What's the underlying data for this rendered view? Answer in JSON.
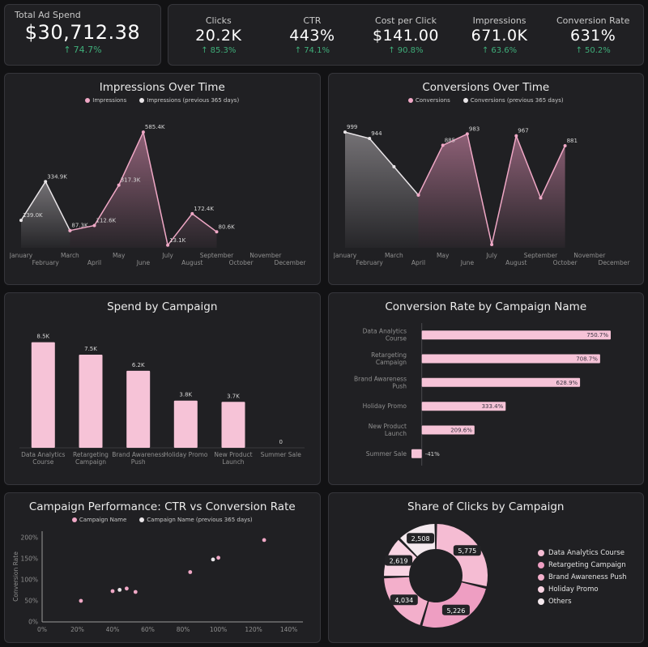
{
  "page": {
    "background": "#121214",
    "card_color": "#202023",
    "accent_pink": "#f2b4ce",
    "previous_period_color": "#e9e5e8",
    "positive_green": "#3fae7a"
  },
  "kpis": {
    "up_arrow": "↑",
    "primary": {
      "label": "Total Ad Spend",
      "value": "$30,712.38",
      "delta": "74.7%"
    },
    "items": [
      {
        "label": "Clicks",
        "value": "20.2K",
        "delta": "85.3%"
      },
      {
        "label": "CTR",
        "value": "443%",
        "delta": "74.1%"
      },
      {
        "label": "Cost per Click",
        "value": "$141.00",
        "delta": "90.8%"
      },
      {
        "label": "Impressions",
        "value": "671.0K",
        "delta": "63.6%"
      },
      {
        "label": "Conversion Rate",
        "value": "631%",
        "delta": "50.2%"
      }
    ]
  },
  "chart_data": [
    {
      "type": "area",
      "title": "Impressions Over Time",
      "legend": [
        {
          "label": "Impressions",
          "color": "#f0a8c6"
        },
        {
          "label": "Impressions (previous 365 days)",
          "color": "#e9e5e8"
        }
      ],
      "x_categories": [
        "January",
        "February",
        "March",
        "April",
        "May",
        "June",
        "July",
        "August",
        "September",
        "October",
        "November",
        "December"
      ],
      "series": [
        {
          "name": "Impressions (previous 365 days)",
          "color": "#e9e5e8",
          "fill": "#b9b4b8",
          "values": [
            139000,
            334900,
            87300,
            null,
            null,
            null,
            null,
            null,
            null,
            null,
            null,
            null
          ],
          "labels": [
            "139.0K",
            "334.9K",
            "87.3K",
            "",
            "",
            "",
            "",
            "",
            "",
            "",
            "",
            ""
          ]
        },
        {
          "name": "Impressions",
          "color": "#f0a8c6",
          "fill": "#e895bb",
          "values": [
            null,
            null,
            87300,
            112600,
            317300,
            585400,
            13100,
            172400,
            80600,
            null,
            null,
            null
          ],
          "labels": [
            "",
            "",
            "",
            "112.6K",
            "317.3K",
            "585.4K",
            "13.1K",
            "172.4K",
            "80.6K",
            "",
            "",
            ""
          ]
        }
      ]
    },
    {
      "type": "area",
      "title": "Conversions Over Time",
      "legend": [
        {
          "label": "Conversions",
          "color": "#f0a8c6"
        },
        {
          "label": "Conversions (previous 365 days)",
          "color": "#e9e5e8"
        }
      ],
      "x_categories": [
        "January",
        "February",
        "March",
        "April",
        "May",
        "June",
        "July",
        "August",
        "September",
        "October",
        "November",
        "December"
      ],
      "series": [
        {
          "name": "Conversions (previous 365 days)",
          "color": "#e9e5e8",
          "fill": "#b9b4b8",
          "values": [
            999,
            944,
            700,
            455,
            null,
            null,
            null,
            null,
            null,
            null,
            null,
            null
          ],
          "labels": [
            "999",
            "944",
            "",
            "",
            "",
            "",
            "",
            "",
            "",
            "",
            "",
            ""
          ]
        },
        {
          "name": "Conversions",
          "color": "#f0a8c6",
          "fill": "#e895bb",
          "values": [
            null,
            null,
            null,
            455,
            885,
            983,
            28,
            967,
            430,
            881,
            null,
            null
          ],
          "labels": [
            "",
            "",
            "",
            "",
            "885",
            "983",
            "",
            "967",
            "",
            "881",
            "",
            ""
          ]
        }
      ]
    },
    {
      "type": "bar",
      "title": "Spend by Campaign",
      "bar_color": "#f6c3d7",
      "categories": [
        "Data Analytics Course",
        "Retargeting Campaign",
        "Brand Awareness Push",
        "Holiday Promo",
        "New Product Launch",
        "Summer Sale"
      ],
      "values": [
        8500,
        7500,
        6200,
        3800,
        3700,
        0
      ],
      "labels": [
        "8.5K",
        "7.5K",
        "6.2K",
        "3.8K",
        "3.7K",
        "0"
      ]
    },
    {
      "type": "hbar",
      "title": "Conversion Rate by Campaign Name",
      "bar_color": "#f6c3d7",
      "categories": [
        "Data Analytics Course",
        "Retargeting Campaign",
        "Brand Awareness Push",
        "Holiday Promo",
        "New Product Launch",
        "Summer Sale"
      ],
      "values": [
        750.7,
        708.7,
        628.9,
        333.4,
        209.6,
        -41
      ],
      "labels": [
        "750.7%",
        "708.7%",
        "628.9%",
        "333.4%",
        "209.6%",
        "-41%"
      ]
    },
    {
      "type": "scatter",
      "title": "Campaign Performance: CTR vs Conversion Rate",
      "legend": [
        {
          "label": "Campaign Name",
          "color": "#f0a8c6"
        },
        {
          "label": "Campaign Name (previous 365 days)",
          "color": "#e9e5e8"
        }
      ],
      "ylabel": "Conversion Rate",
      "xlim": [
        0,
        148
      ],
      "ylim": [
        0,
        215
      ],
      "x_tick_values": [
        0,
        20,
        40,
        60,
        80,
        100,
        120,
        140
      ],
      "x_ticks": [
        "0%",
        "20%",
        "40%",
        "60%",
        "80%",
        "100%",
        "120%",
        "140%"
      ],
      "y_tick_values": [
        0,
        50,
        100,
        150,
        200
      ],
      "y_ticks": [
        "0%",
        "50%",
        "100%",
        "150%",
        "200%"
      ],
      "series": [
        {
          "name": "Campaign Name",
          "color": "#f0a8c6",
          "points": [
            [
              22,
              50
            ],
            [
              40,
              73
            ],
            [
              48,
              79
            ],
            [
              53,
              71
            ],
            [
              84,
              118
            ],
            [
              100,
              152
            ],
            [
              126,
              194
            ]
          ]
        },
        {
          "name": "Campaign Name (previous 365 days)",
          "color": "#e9e5e8",
          "points": [
            [
              44,
              76
            ],
            [
              97,
              148
            ]
          ]
        }
      ]
    },
    {
      "type": "donut",
      "title": "Share of Clicks by Campaign",
      "slices": [
        {
          "label": "Data Analytics Course",
          "value": 5775,
          "display": "5,775",
          "color": "#f5bcd3"
        },
        {
          "label": "Retargeting Campaign",
          "value": 5226,
          "display": "5,226",
          "color": "#ee9ec2"
        },
        {
          "label": "Brand Awareness Push",
          "value": 4034,
          "display": "4,034",
          "color": "#f3afcb"
        },
        {
          "label": "Holiday Promo",
          "value": 2619,
          "display": "2,619",
          "color": "#f9d4e3"
        },
        {
          "label": "Others",
          "value": 2508,
          "display": "2,508",
          "color": "#f4e9ee"
        }
      ]
    }
  ]
}
